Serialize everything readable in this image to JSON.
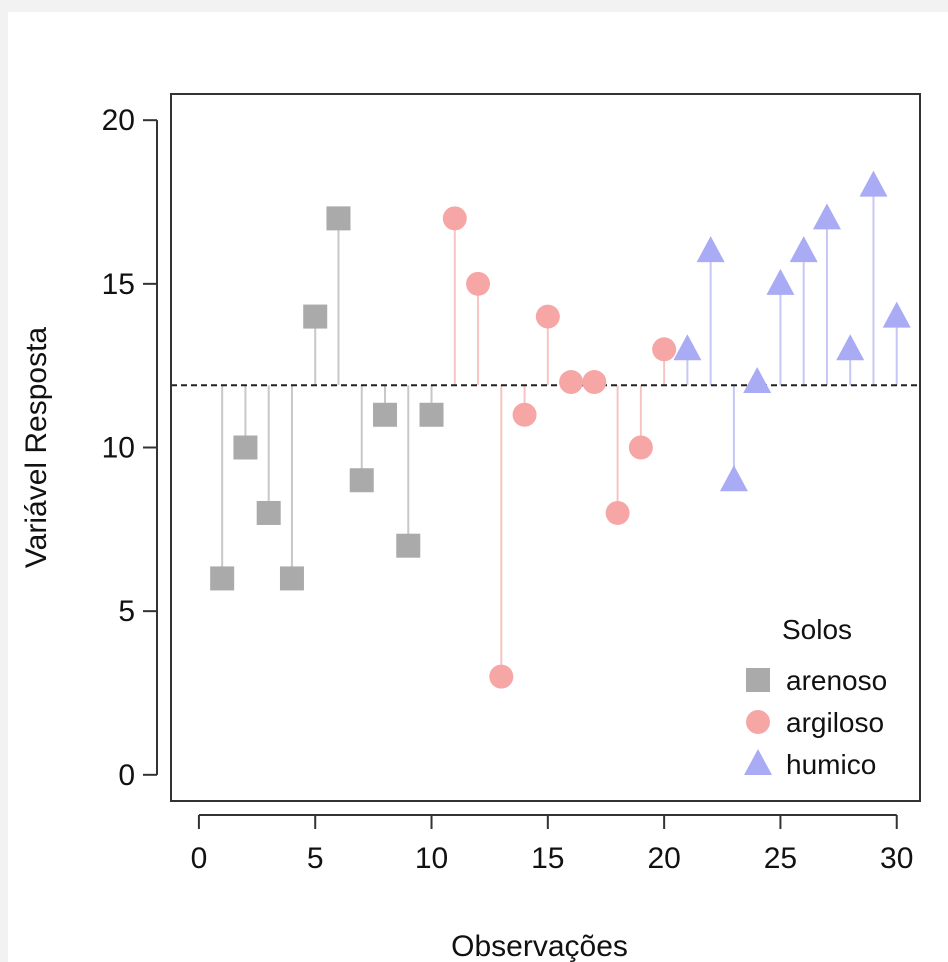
{
  "chart_data": {
    "type": "scatter",
    "xlabel": "Observações",
    "ylabel": "Variável Resposta",
    "xlim": [
      -1.2,
      31.0
    ],
    "ylim": [
      -0.8,
      20.8
    ],
    "x_ticks": [
      0,
      5,
      10,
      15,
      20,
      25,
      30
    ],
    "y_ticks": [
      0,
      5,
      10,
      15,
      20
    ],
    "reference_line": {
      "y": 11.9,
      "style": "dashed"
    },
    "grid": false,
    "legend": {
      "title": "Solos",
      "position": "bottom-right",
      "entries": [
        "arenoso",
        "argiloso",
        "humico"
      ]
    },
    "series": [
      {
        "name": "arenoso",
        "marker": "square",
        "color": "#aaaaaa",
        "stem_color": "#c8c8c8",
        "x": [
          1,
          2,
          3,
          4,
          5,
          6,
          7,
          8,
          9,
          10
        ],
        "values": [
          6,
          10,
          8,
          6,
          14,
          17,
          9,
          11,
          7,
          11
        ]
      },
      {
        "name": "argiloso",
        "marker": "circle",
        "color": "#f7a6a6",
        "stem_color": "#f7c4c4",
        "x": [
          11,
          12,
          13,
          14,
          15,
          16,
          17,
          18,
          19,
          20
        ],
        "values": [
          17,
          15,
          3,
          11,
          14,
          12,
          12,
          8,
          10,
          13
        ]
      },
      {
        "name": "humico",
        "marker": "triangle",
        "color": "#a9abf5",
        "stem_color": "#c6c7f5",
        "x": [
          21,
          22,
          23,
          24,
          25,
          26,
          27,
          28,
          29,
          30
        ],
        "values": [
          13,
          16,
          9,
          12,
          15,
          16,
          17,
          13,
          18,
          14
        ]
      }
    ]
  }
}
